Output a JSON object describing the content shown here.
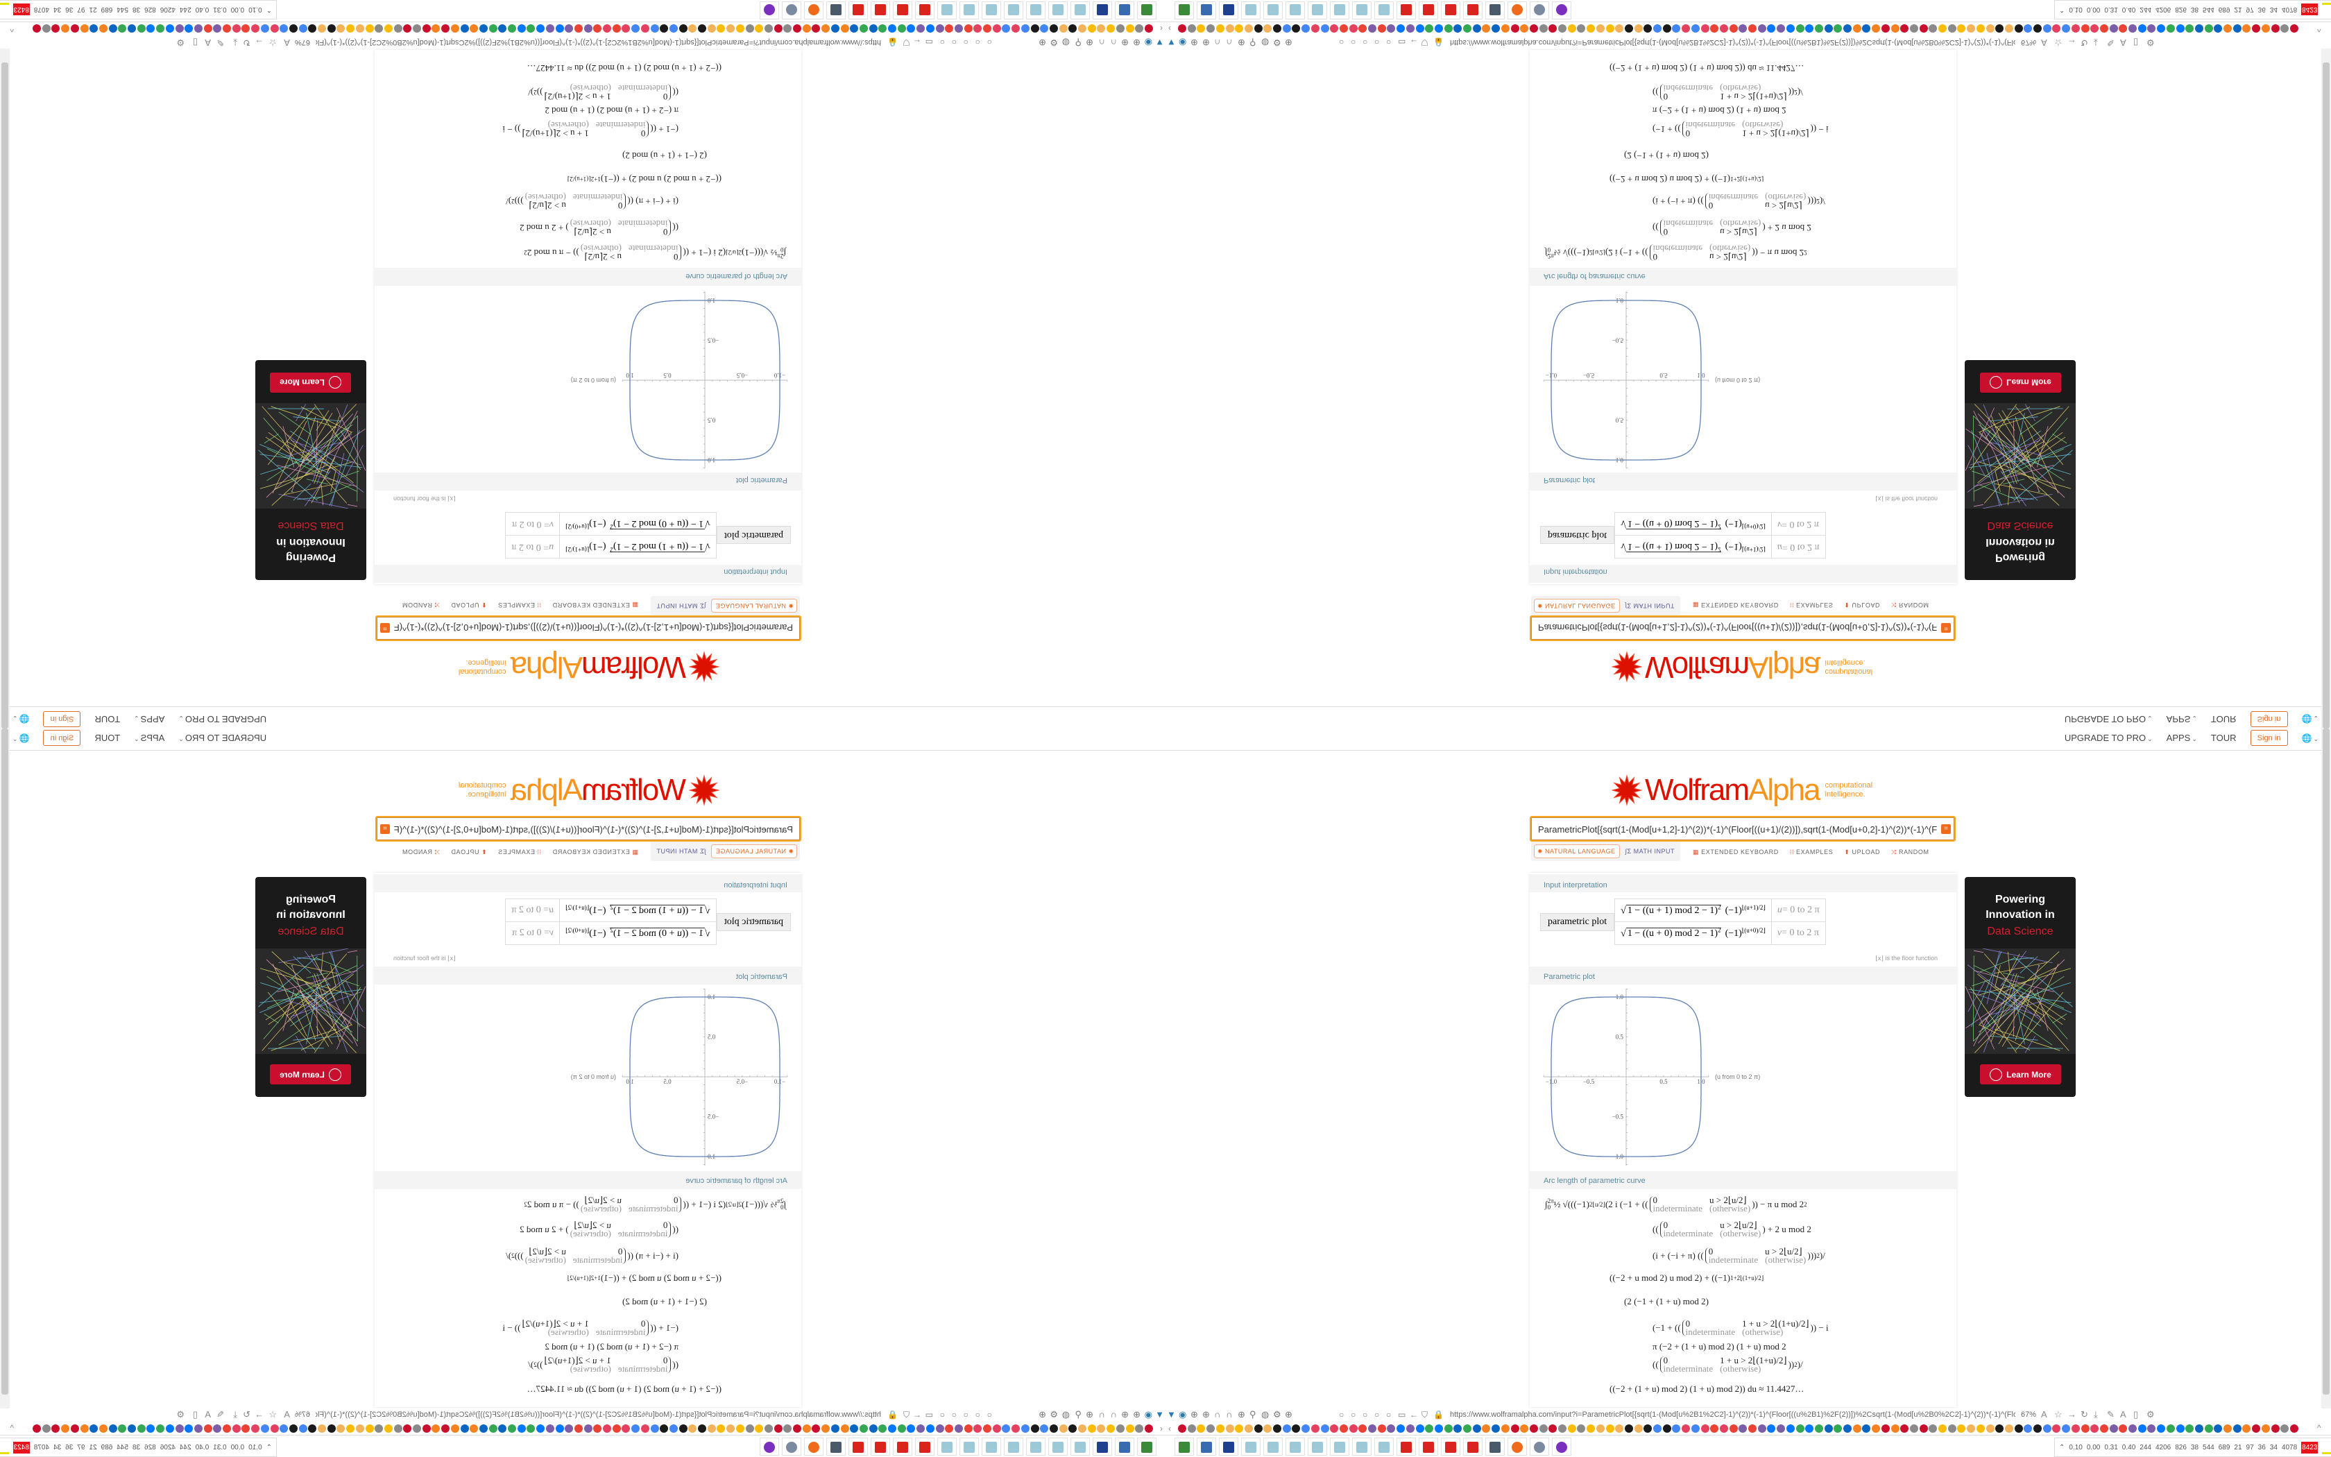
{
  "header": {
    "upgrade": "UPGRADE TO PRO",
    "apps": "APPS",
    "tour": "TOUR",
    "sign_in": "Sign in"
  },
  "logo": {
    "wolfram": "Wolfram",
    "alpha": "Alpha",
    "tagline1": "computational",
    "tagline2": "intelligence.",
    "colors": {
      "wolfram": "#dd1100",
      "alpha": "#f7941d"
    }
  },
  "search": {
    "value": "ParametricPlot[{sqrt(1-(Mod[u+1,2]-1)^(2))*(-1)^(Floor[((u+1)/(2))]),sqrt(1-(Mod[u+0,2]-1)^(2))*(-1)^(Floo",
    "equals_icon": "="
  },
  "modes": {
    "natural": "NATURAL LANGUAGE",
    "math": "MATH INPUT"
  },
  "tools": {
    "keyboard": "EXTENDED KEYBOARD",
    "examples": "EXAMPLES",
    "upload": "UPLOAD",
    "random": "RANDOM"
  },
  "interp": {
    "title": "Input interpretation",
    "label": "parametric plot",
    "rows": [
      {
        "radicand": "1 − ((u + 1) mod 2 − 1)",
        "sq": "2",
        "factor": "(−1)",
        "exp": "⌊(u+1)/2⌋",
        "var": "u",
        "range": "= 0 to 2 π"
      },
      {
        "radicand": "1 − ((u + 0) mod 2 − 1)",
        "sq": "2",
        "factor": "(−1)",
        "exp": "⌊(u+0)/2⌋",
        "var": "v",
        "range": "= 0 to 2 π"
      }
    ],
    "note": "⌊x⌋ is the floor function"
  },
  "plot": {
    "title": "Parametric plot",
    "x_ticks": [
      "−1.0",
      "−0.5",
      "0.5",
      "1.0"
    ],
    "y_ticks": [
      "1.0",
      "0.5",
      "−0.5",
      "−1.0"
    ],
    "range_label": "(u from 0 to 2 π)",
    "line_color": "#5e81b5"
  },
  "arc": {
    "title": "Arc length of parametric curve",
    "lines": [
      [
        {
          "t": "∫",
          "sub": "0",
          "sup": "2π"
        },
        {
          "t": " ½ √(((−1)",
          "sup": "2⌊u/2⌋"
        },
        {
          "t": " (2 i (−1 + (("
        },
        {
          "pw": {
            "a": "0",
            "c": "u > 2⌊u/2⌋",
            "b": "indeterminate",
            "o": "(otherwise)"
          }
        },
        {
          "t": ")) − π u mod 2",
          "sup": "2"
        }
      ],
      [
        {
          "t": "(("
        },
        {
          "pw": {
            "a": "0",
            "c": "u > 2⌊u/2⌋",
            "b": "indeterminate",
            "o": "(otherwise)"
          }
        },
        {
          "t": ") + 2 u mod 2"
        }
      ],
      [
        {
          "t": "(i + (−i + π) (("
        },
        {
          "pw": {
            "a": "0",
            "c": "u > 2⌊u/2⌋",
            "b": "indeterminate",
            "o": "(otherwise)"
          }
        },
        {
          "t": ")))",
          "sup": "2"
        },
        {
          "t": ")/"
        }
      ],
      [
        {
          "t": "((−2 + u mod 2) u mod 2) + ((−1)",
          "sup": "1+2⌊(1+u)/2⌋"
        }
      ],
      [
        {
          "t": "(2 (−1 + (1 + u) mod 2)"
        }
      ],
      [
        {
          "t": "(−1 + (("
        },
        {
          "pw": {
            "a": "0",
            "c": "1 + u > 2⌊(1+u)/2⌋",
            "b": "indeterminate",
            "o": "(otherwise)"
          }
        },
        {
          "t": ")) − i"
        }
      ],
      [
        {
          "t": "π (−2 + (1 + u) mod 2) (1 + u) mod 2"
        }
      ],
      [
        {
          "t": "(("
        },
        {
          "pw": {
            "a": "0",
            "c": "1 + u > 2⌊(1+u)/2⌋",
            "b": "indeterminate",
            "o": "(otherwise)"
          }
        },
        {
          "t": "))",
          "sup": "2"
        },
        {
          "t": ")/"
        }
      ],
      [
        {
          "t": "((−2 + (1 + u) mod 2) (1 + u) mod 2)) du ≈ 11.4427…"
        }
      ]
    ]
  },
  "ad": {
    "line1": "Powering",
    "line2": "Innovation in",
    "line3": "Data Science",
    "button": "Learn More",
    "accent": "#c8102e"
  },
  "browser": {
    "url": "https://www.wolframalpha.com/input?i=ParametricPlot[{sqrt(1-(Mod[u%2B1%2C2]-1)^(2))*(-1)^(Floor[((u%2B1)%2F(2))])%2Csqrt(1-(Mod[u%2B0%2C2]-1)^(2))*(-1)^(Floor[((u%2B0",
    "zoom": "67%",
    "bookmark_colors": [
      "#c8102e",
      "#4285f4",
      "#34a853",
      "#fbbc05",
      "#ea4335",
      "#f58220",
      "#1a1a1a",
      "#0077ff",
      "#8a8a8a",
      "#e4405f",
      "#0a66c2",
      "#f3b35b",
      "#7b5ea7"
    ]
  },
  "taskbar": {
    "stats": [
      "0.10",
      "0.00",
      "0.31",
      "0.40",
      "244",
      "4206",
      "826",
      "38",
      "544",
      "689",
      "21",
      "97",
      "36",
      "34",
      "4078",
      "8423"
    ]
  }
}
